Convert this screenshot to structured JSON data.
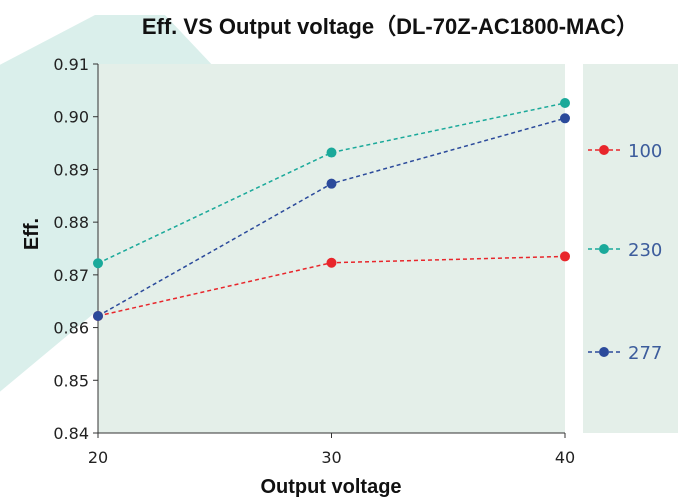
{
  "chart_data": {
    "type": "line",
    "title": "Eff. VS Output voltage（DL-70Z-AC1800-MAC）",
    "xlabel": "Output voltage",
    "ylabel": "Eff.",
    "x": [
      20,
      30,
      40
    ],
    "xticks": [
      "20",
      "30",
      "40"
    ],
    "ylim": [
      0.84,
      0.91
    ],
    "yticks": [
      "0.84",
      "0.85",
      "0.86",
      "0.87",
      "0.88",
      "0.89",
      "0.90",
      "0.91"
    ],
    "grid": false,
    "legend_position": "right",
    "series": [
      {
        "name": "100",
        "color": "#e8262b",
        "values": [
          0.8622,
          0.8723,
          0.8735
        ]
      },
      {
        "name": "230",
        "color": "#1aa99a",
        "values": [
          0.8722,
          0.8932,
          0.9026
        ]
      },
      {
        "name": "277",
        "color": "#2b4a9b",
        "values": [
          0.8622,
          0.8873,
          0.8997
        ]
      }
    ],
    "colors": {
      "plot_background": "#e4efe9",
      "watermark": "#d3ece8",
      "legend_text": "#3c5c9c"
    }
  }
}
